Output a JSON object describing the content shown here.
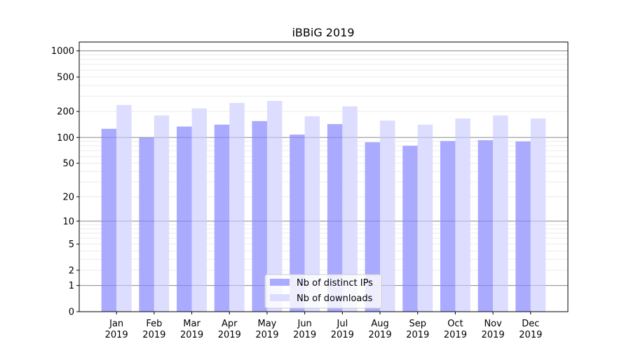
{
  "chart_data": {
    "type": "bar",
    "title": "iBBiG 2019",
    "xlabel": "",
    "ylabel": "",
    "yscale": "log(1+y)",
    "ylim": [
      0,
      1265
    ],
    "yticks": [
      0,
      1,
      2,
      5,
      10,
      20,
      50,
      100,
      200,
      500,
      1000
    ],
    "ytick_labels": [
      "0",
      "1",
      "2",
      "5",
      "10",
      "20",
      "50",
      "100",
      "200",
      "500",
      "1000"
    ],
    "grid": true,
    "legend_position": "lower center",
    "categories": [
      "Jan\n2019",
      "Feb\n2019",
      "Mar\n2019",
      "Apr\n2019",
      "May\n2019",
      "Jun\n2019",
      "Jul\n2019",
      "Aug\n2019",
      "Sep\n2019",
      "Oct\n2019",
      "Nov\n2019",
      "Dec\n2019"
    ],
    "category_months": [
      "Jan",
      "Feb",
      "Mar",
      "Apr",
      "May",
      "Jun",
      "Jul",
      "Aug",
      "Sep",
      "Oct",
      "Nov",
      "Dec"
    ],
    "category_year": "2019",
    "series": [
      {
        "name": "Nb of distinct IPs",
        "color": "#aaaaff",
        "values": [
          126,
          99,
          134,
          141,
          155,
          108,
          143,
          88,
          80,
          91,
          93,
          90
        ]
      },
      {
        "name": "Nb of downloads",
        "color": "#ddddff",
        "values": [
          238,
          180,
          217,
          251,
          265,
          176,
          229,
          157,
          141,
          166,
          180,
          166
        ]
      }
    ]
  }
}
